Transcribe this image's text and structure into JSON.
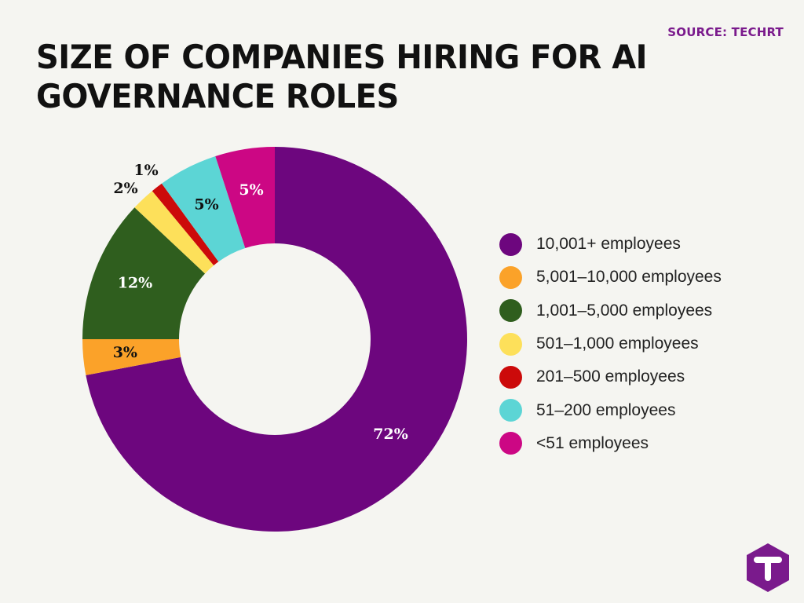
{
  "header": {
    "title": "SIZE OF COMPANIES HIRING FOR AI GOVERNANCE ROLES",
    "source": "SOURCE: TECHRT"
  },
  "chart_data": {
    "type": "pie",
    "donut": true,
    "legend_position": "right",
    "categories": [
      "10,001+ employees",
      "5,001–10,000 employees",
      "1,001–5,000 employees",
      "501–1,000 employees",
      "201–500 employees",
      "51–200 employees",
      "<51 employees"
    ],
    "values": [
      72,
      3,
      12,
      2,
      1,
      5,
      5
    ],
    "labels": [
      "72%",
      "3%",
      "12%",
      "2%",
      "1%",
      "5%",
      "5%"
    ],
    "colors": [
      "#6d067e",
      "#fba229",
      "#2f5e1e",
      "#fde05a",
      "#cc0a0a",
      "#5cd5d5",
      "#cc0784"
    ],
    "label_colors": [
      "#ffffff",
      "#111111",
      "#ffffff",
      "#111111",
      "#111111",
      "#111111",
      "#ffffff"
    ]
  },
  "logo": {
    "icon": "techrt-logo-icon",
    "color": "#7a1a8c"
  }
}
